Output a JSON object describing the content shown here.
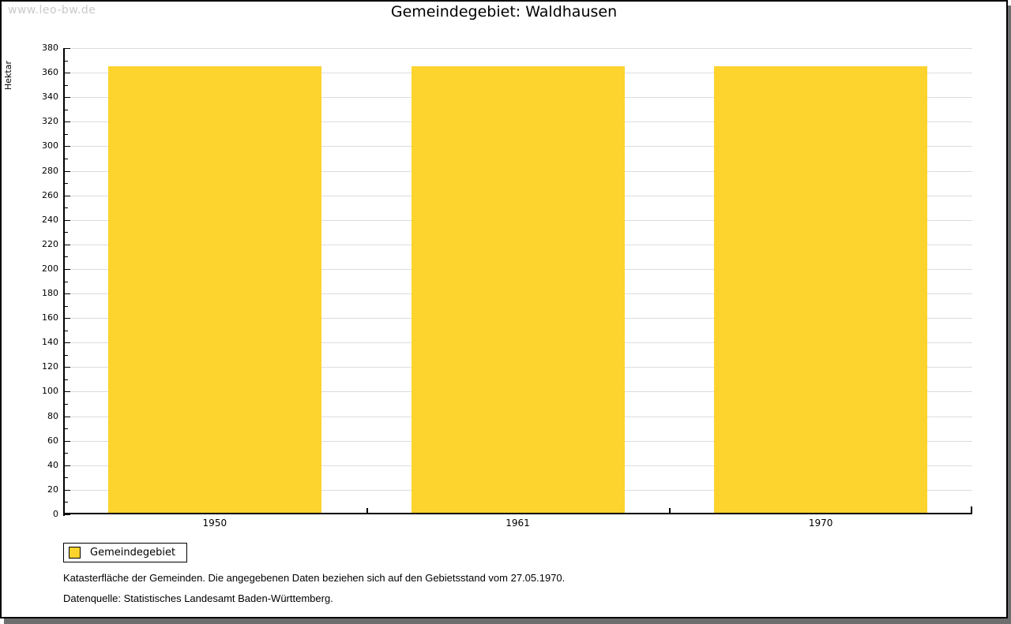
{
  "watermark": "www.leo-bw.de",
  "chart_data": {
    "type": "bar",
    "title": "Gemeindegebiet: Waldhausen",
    "ylabel": "Hektar",
    "xlabel": "",
    "categories": [
      "1950",
      "1961",
      "1970"
    ],
    "series": [
      {
        "name": "Gemeindegebiet",
        "values": [
          365,
          365,
          365
        ]
      }
    ],
    "ylim": [
      0,
      380
    ],
    "ytick_step": 20,
    "yminor_step": 10,
    "yticks": [
      0,
      20,
      40,
      60,
      80,
      100,
      120,
      140,
      160,
      180,
      200,
      220,
      240,
      260,
      280,
      300,
      320,
      340,
      360,
      380
    ],
    "grid": true,
    "legend_position": "bottom-left"
  },
  "legend": {
    "items": [
      {
        "label": "Gemeindegebiet",
        "color": "#FDD32D"
      }
    ]
  },
  "footnotes": [
    "Katasterfläche der Gemeinden. Die angegebenen Daten beziehen sich auf den Gebietsstand vom 27.05.1970.",
    "Datenquelle: Statistisches Landesamt Baden-Württemberg."
  ],
  "colors": {
    "bar": "#FDD32D",
    "grid": "#DCDCDC",
    "axis": "#000000",
    "shadow": "#6E6E6E",
    "watermark": "#C9C9C9",
    "background": "#FFFFFF"
  }
}
